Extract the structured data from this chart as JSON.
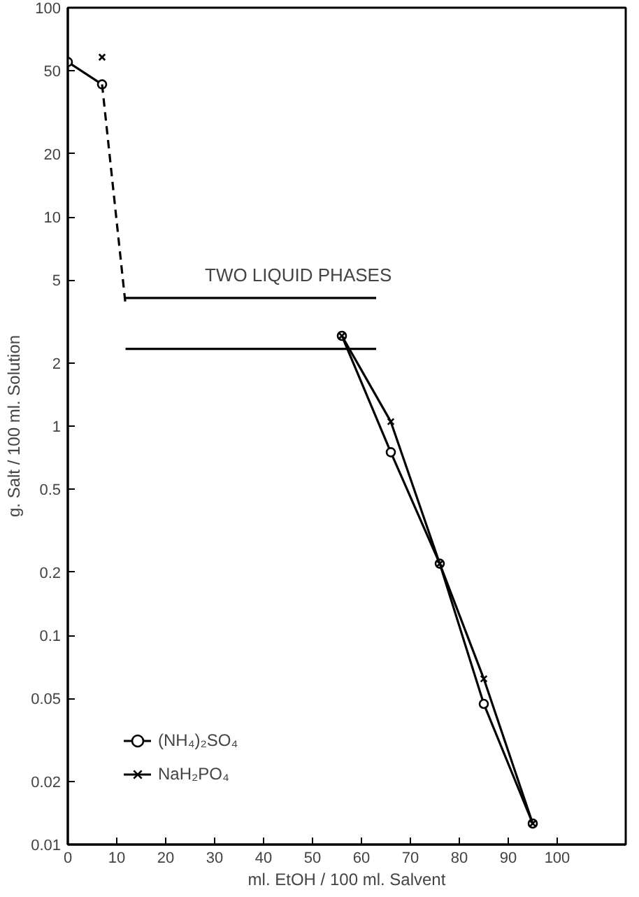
{
  "chart_data": {
    "type": "line",
    "xlabel": "ml. EtOH / 100 ml. Salvent",
    "ylabel": "g. Salt / 100 ml. Solution",
    "log": "y",
    "xlim": [
      0,
      114
    ],
    "ylim": [
      0.01,
      100
    ],
    "xticks": [
      0,
      10,
      20,
      30,
      40,
      50,
      60,
      70,
      80,
      90,
      100
    ],
    "yticks": [
      0.01,
      0.02,
      0.05,
      0.1,
      0.2,
      0.5,
      1,
      2,
      5,
      10,
      20,
      50,
      100
    ],
    "grid": false,
    "legend": "bottom left",
    "annotations": [
      "TWO LIQUID PHASES"
    ],
    "series": [
      {
        "name": "(NH₄)₂SO₄",
        "color": "#000000",
        "marker": "circle",
        "line_style": "solid",
        "x": [
          56,
          66,
          76,
          85,
          95
        ],
        "values": [
          2.7,
          0.75,
          0.22,
          0.047,
          0.0126
        ]
      },
      {
        "name": "NaH₂PO₄",
        "color": "#000000",
        "marker": "cross",
        "line_style": "solid",
        "x": [
          56,
          66,
          76,
          85,
          95
        ],
        "values": [
          2.7,
          1.05,
          0.22,
          0.062,
          0.0126
        ]
      },
      {
        "color": "#000000",
        "marker": "circle",
        "line_style": "solid",
        "x": [
          0,
          7
        ],
        "values": [
          55,
          43
        ]
      },
      {
        "type": "scatter",
        "color": "#000000",
        "marker": "cross",
        "x": [
          7
        ],
        "values": [
          58
        ]
      },
      {
        "color": "#000000",
        "marker": "none",
        "line_style": "dashed",
        "x": [
          7,
          11.8
        ],
        "values": [
          43,
          3.8
        ]
      },
      {
        "color": "#000000",
        "marker": "none",
        "line_style": "solid",
        "x": [
          11.8,
          63
        ],
        "values": [
          4.1,
          4.1
        ]
      },
      {
        "color": "#000000",
        "marker": "none",
        "line_style": "solid",
        "x": [
          11.8,
          63
        ],
        "values": [
          2.34,
          2.34
        ]
      }
    ]
  }
}
